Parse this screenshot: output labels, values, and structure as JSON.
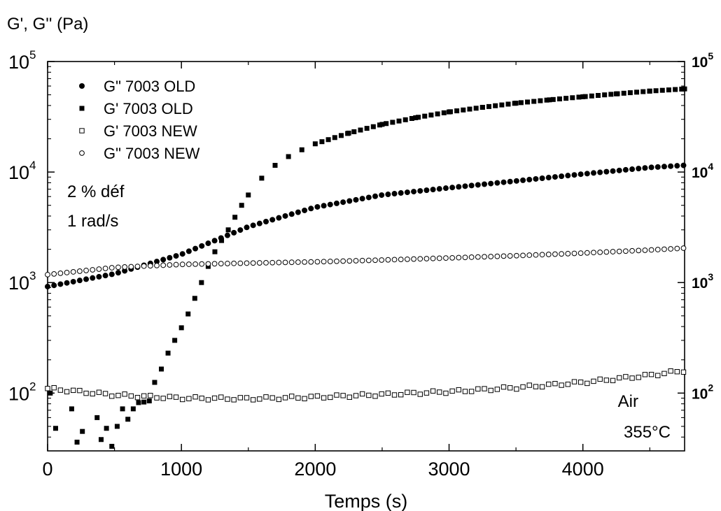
{
  "chart_data": {
    "type": "scatter",
    "title": "",
    "ylabel": "G', G'' (Pa)",
    "xlabel": "Temps (s)",
    "xlim": [
      0,
      4760
    ],
    "ylim": [
      30,
      100000
    ],
    "yscale": "log",
    "x_ticks": [
      "0",
      "1000",
      "2000",
      "3000",
      "4000"
    ],
    "x_tick_values": [
      0,
      1000,
      2000,
      3000,
      4000
    ],
    "y_ticks": [
      {
        "base": "10",
        "exp": "2",
        "value": 100
      },
      {
        "base": "10",
        "exp": "3",
        "value": 1000
      },
      {
        "base": "10",
        "exp": "4",
        "value": 10000
      },
      {
        "base": "10",
        "exp": "5",
        "value": 100000
      }
    ],
    "grid": false,
    "legend_position": "top-left",
    "annotations": {
      "deformation": "2 % déf",
      "frequency": "1 rad/s",
      "atmosphere": "Air",
      "temperature": "355°C"
    },
    "series": [
      {
        "name": "G\" 7003 OLD",
        "marker": "filled-circle",
        "x": [
          0,
          500,
          1000,
          1500,
          2000,
          2500,
          3000,
          3500,
          4000,
          4500,
          4760
        ],
        "y": [
          920,
          1200,
          1800,
          3200,
          4800,
          6200,
          7200,
          8300,
          9600,
          11000,
          11500
        ]
      },
      {
        "name": "G' 7003 OLD",
        "marker": "filled-square",
        "x": [
          20,
          60,
          180,
          220,
          260,
          370,
          400,
          440,
          480,
          520,
          560,
          600,
          640,
          680,
          720,
          760,
          800,
          850,
          900,
          950,
          1000,
          1050,
          1100,
          1150,
          1200,
          1250,
          1300,
          1350,
          1400,
          1450,
          1500,
          1600,
          1700,
          1800,
          1900,
          2000,
          2250,
          2500,
          2750,
          3000,
          3250,
          3500,
          3750,
          4000,
          4250,
          4500,
          4760
        ],
        "y": [
          100,
          48,
          72,
          36,
          45,
          60,
          38,
          48,
          33,
          50,
          72,
          58,
          72,
          82,
          83,
          85,
          125,
          165,
          230,
          300,
          390,
          520,
          720,
          1000,
          1400,
          1900,
          2400,
          3000,
          3900,
          5000,
          6200,
          8800,
          11500,
          13800,
          15900,
          18000,
          22500,
          27000,
          31000,
          35000,
          38500,
          42000,
          45000,
          48000,
          51000,
          54000,
          56500
        ]
      },
      {
        "name": "G' 7003 NEW",
        "marker": "open-square",
        "x": [
          0,
          500,
          1000,
          1500,
          2000,
          2500,
          3000,
          3500,
          4000,
          4500,
          4760
        ],
        "y": [
          110,
          96,
          90,
          89,
          92,
          97,
          103,
          112,
          125,
          145,
          160
        ]
      },
      {
        "name": "G\" 7003 NEW",
        "marker": "open-circle",
        "x": [
          0,
          500,
          1000,
          1500,
          2000,
          2500,
          3000,
          3500,
          4000,
          4500,
          4760
        ],
        "y": [
          1180,
          1370,
          1460,
          1500,
          1540,
          1600,
          1670,
          1750,
          1850,
          1970,
          2050
        ]
      }
    ]
  }
}
